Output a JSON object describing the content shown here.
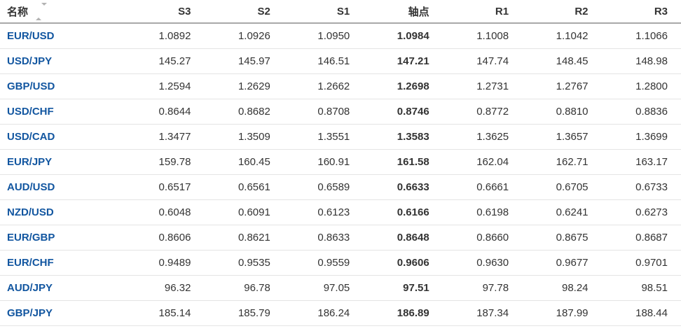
{
  "colors": {
    "link_blue": "#1256a0",
    "text_dark": "#333333",
    "header_border": "#a9a9a9",
    "row_border": "#e4e4e4",
    "sort_icon_gray": "#b3b3b3"
  },
  "table": {
    "columns": [
      {
        "key": "pair",
        "label": "名称"
      },
      {
        "key": "s3",
        "label": "S3"
      },
      {
        "key": "s2",
        "label": "S2"
      },
      {
        "key": "s1",
        "label": "S1"
      },
      {
        "key": "pivot",
        "label": "轴点"
      },
      {
        "key": "r1",
        "label": "R1"
      },
      {
        "key": "r2",
        "label": "R2"
      },
      {
        "key": "r3",
        "label": "R3"
      }
    ],
    "rows": [
      {
        "pair": "EUR/USD",
        "s3": "1.0892",
        "s2": "1.0926",
        "s1": "1.0950",
        "pivot": "1.0984",
        "r1": "1.1008",
        "r2": "1.1042",
        "r3": "1.1066"
      },
      {
        "pair": "USD/JPY",
        "s3": "145.27",
        "s2": "145.97",
        "s1": "146.51",
        "pivot": "147.21",
        "r1": "147.74",
        "r2": "148.45",
        "r3": "148.98"
      },
      {
        "pair": "GBP/USD",
        "s3": "1.2594",
        "s2": "1.2629",
        "s1": "1.2662",
        "pivot": "1.2698",
        "r1": "1.2731",
        "r2": "1.2767",
        "r3": "1.2800"
      },
      {
        "pair": "USD/CHF",
        "s3": "0.8644",
        "s2": "0.8682",
        "s1": "0.8708",
        "pivot": "0.8746",
        "r1": "0.8772",
        "r2": "0.8810",
        "r3": "0.8836"
      },
      {
        "pair": "USD/CAD",
        "s3": "1.3477",
        "s2": "1.3509",
        "s1": "1.3551",
        "pivot": "1.3583",
        "r1": "1.3625",
        "r2": "1.3657",
        "r3": "1.3699"
      },
      {
        "pair": "EUR/JPY",
        "s3": "159.78",
        "s2": "160.45",
        "s1": "160.91",
        "pivot": "161.58",
        "r1": "162.04",
        "r2": "162.71",
        "r3": "163.17"
      },
      {
        "pair": "AUD/USD",
        "s3": "0.6517",
        "s2": "0.6561",
        "s1": "0.6589",
        "pivot": "0.6633",
        "r1": "0.6661",
        "r2": "0.6705",
        "r3": "0.6733"
      },
      {
        "pair": "NZD/USD",
        "s3": "0.6048",
        "s2": "0.6091",
        "s1": "0.6123",
        "pivot": "0.6166",
        "r1": "0.6198",
        "r2": "0.6241",
        "r3": "0.6273"
      },
      {
        "pair": "EUR/GBP",
        "s3": "0.8606",
        "s2": "0.8621",
        "s1": "0.8633",
        "pivot": "0.8648",
        "r1": "0.8660",
        "r2": "0.8675",
        "r3": "0.8687"
      },
      {
        "pair": "EUR/CHF",
        "s3": "0.9489",
        "s2": "0.9535",
        "s1": "0.9559",
        "pivot": "0.9606",
        "r1": "0.9630",
        "r2": "0.9677",
        "r3": "0.9701"
      },
      {
        "pair": "AUD/JPY",
        "s3": "96.32",
        "s2": "96.78",
        "s1": "97.05",
        "pivot": "97.51",
        "r1": "97.78",
        "r2": "98.24",
        "r3": "98.51"
      },
      {
        "pair": "GBP/JPY",
        "s3": "185.14",
        "s2": "185.79",
        "s1": "186.24",
        "pivot": "186.89",
        "r1": "187.34",
        "r2": "187.99",
        "r3": "188.44"
      }
    ]
  }
}
